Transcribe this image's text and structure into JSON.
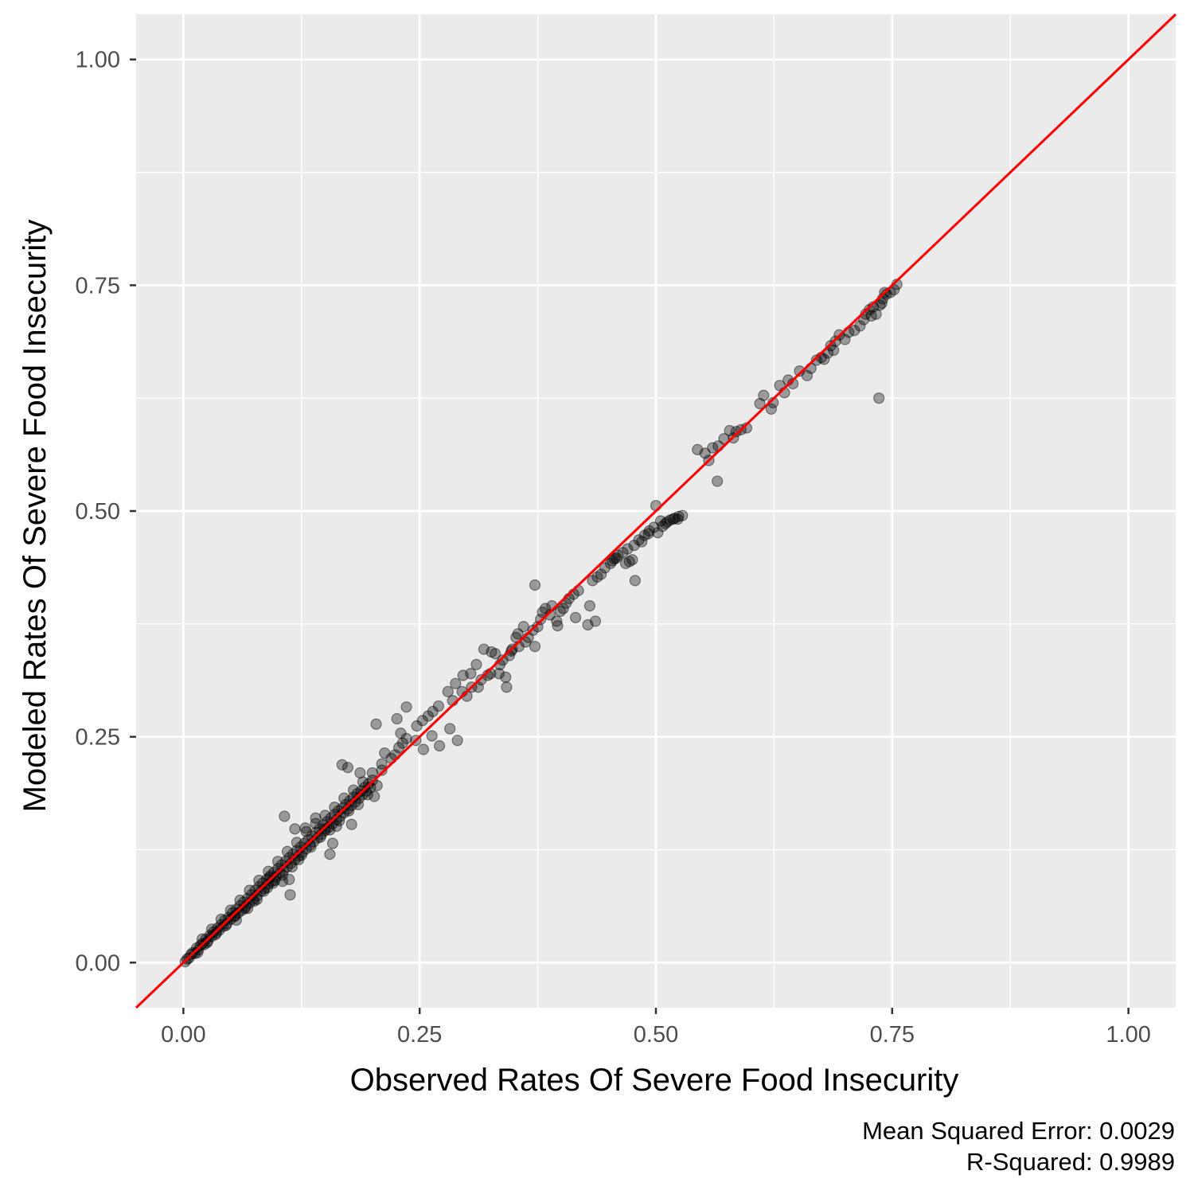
{
  "chart_data": {
    "type": "scatter",
    "xlabel": "Observed Rates Of Severe Food Insecurity",
    "ylabel": "Modeled Rates Of Severe Food Insecurity",
    "xlim": [
      -0.05,
      1.05
    ],
    "ylim": [
      -0.05,
      1.05
    ],
    "x_ticks": [
      "0.00",
      "0.25",
      "0.50",
      "0.75",
      "1.00"
    ],
    "y_ticks": [
      "0.00",
      "0.25",
      "0.50",
      "0.75",
      "1.00"
    ],
    "grid": true,
    "reference_line": {
      "type": "identity",
      "slope": 1,
      "intercept": 0,
      "color": "#ff0000"
    },
    "point_color": "#000000",
    "point_alpha": 0.35,
    "caption": [
      "Mean Squared Error: 0.0029",
      "R-Squared: 0.9989"
    ],
    "points": [
      [
        0.002,
        0.001
      ],
      [
        0.004,
        0.004
      ],
      [
        0.006,
        0.005
      ],
      [
        0.008,
        0.009
      ],
      [
        0.01,
        0.011
      ],
      [
        0.012,
        0.01
      ],
      [
        0.014,
        0.016
      ],
      [
        0.016,
        0.014
      ],
      [
        0.018,
        0.019
      ],
      [
        0.02,
        0.021
      ],
      [
        0.022,
        0.02
      ],
      [
        0.024,
        0.026
      ],
      [
        0.026,
        0.024
      ],
      [
        0.028,
        0.03
      ],
      [
        0.03,
        0.029
      ],
      [
        0.032,
        0.034
      ],
      [
        0.034,
        0.031
      ],
      [
        0.036,
        0.038
      ],
      [
        0.038,
        0.036
      ],
      [
        0.04,
        0.042
      ],
      [
        0.042,
        0.04
      ],
      [
        0.044,
        0.047
      ],
      [
        0.046,
        0.043
      ],
      [
        0.048,
        0.05
      ],
      [
        0.05,
        0.048
      ],
      [
        0.052,
        0.055
      ],
      [
        0.054,
        0.051
      ],
      [
        0.056,
        0.059
      ],
      [
        0.058,
        0.055
      ],
      [
        0.06,
        0.063
      ],
      [
        0.062,
        0.058
      ],
      [
        0.064,
        0.067
      ],
      [
        0.066,
        0.062
      ],
      [
        0.068,
        0.071
      ],
      [
        0.07,
        0.066
      ],
      [
        0.072,
        0.075
      ],
      [
        0.074,
        0.07
      ],
      [
        0.076,
        0.08
      ],
      [
        0.078,
        0.074
      ],
      [
        0.08,
        0.084
      ],
      [
        0.082,
        0.079
      ],
      [
        0.084,
        0.088
      ],
      [
        0.086,
        0.082
      ],
      [
        0.088,
        0.092
      ],
      [
        0.09,
        0.087
      ],
      [
        0.092,
        0.096
      ],
      [
        0.094,
        0.09
      ],
      [
        0.096,
        0.1
      ],
      [
        0.098,
        0.095
      ],
      [
        0.1,
        0.104
      ],
      [
        0.102,
        0.099
      ],
      [
        0.104,
        0.108
      ],
      [
        0.106,
        0.102
      ],
      [
        0.108,
        0.112
      ],
      [
        0.11,
        0.106
      ],
      [
        0.112,
        0.116
      ],
      [
        0.114,
        0.11
      ],
      [
        0.116,
        0.12
      ],
      [
        0.118,
        0.114
      ],
      [
        0.12,
        0.124
      ],
      [
        0.122,
        0.118
      ],
      [
        0.124,
        0.128
      ],
      [
        0.126,
        0.122
      ],
      [
        0.128,
        0.132
      ],
      [
        0.13,
        0.126
      ],
      [
        0.132,
        0.136
      ],
      [
        0.134,
        0.13
      ],
      [
        0.136,
        0.14
      ],
      [
        0.138,
        0.134
      ],
      [
        0.14,
        0.144
      ],
      [
        0.142,
        0.138
      ],
      [
        0.144,
        0.148
      ],
      [
        0.146,
        0.142
      ],
      [
        0.148,
        0.152
      ],
      [
        0.15,
        0.146
      ],
      [
        0.152,
        0.156
      ],
      [
        0.154,
        0.15
      ],
      [
        0.156,
        0.16
      ],
      [
        0.158,
        0.154
      ],
      [
        0.16,
        0.164
      ],
      [
        0.162,
        0.158
      ],
      [
        0.164,
        0.168
      ],
      [
        0.166,
        0.162
      ],
      [
        0.168,
        0.171
      ],
      [
        0.17,
        0.166
      ],
      [
        0.172,
        0.175
      ],
      [
        0.174,
        0.17
      ],
      [
        0.176,
        0.179
      ],
      [
        0.178,
        0.174
      ],
      [
        0.18,
        0.183
      ],
      [
        0.182,
        0.178
      ],
      [
        0.184,
        0.187
      ],
      [
        0.186,
        0.182
      ],
      [
        0.188,
        0.19
      ],
      [
        0.19,
        0.186
      ],
      [
        0.192,
        0.194
      ],
      [
        0.194,
        0.19
      ],
      [
        0.196,
        0.198
      ],
      [
        0.198,
        0.194
      ],
      [
        0.2,
        0.202
      ],
      [
        0.015,
        0.011
      ],
      [
        0.025,
        0.022
      ],
      [
        0.035,
        0.033
      ],
      [
        0.045,
        0.041
      ],
      [
        0.055,
        0.052
      ],
      [
        0.065,
        0.06
      ],
      [
        0.075,
        0.068
      ],
      [
        0.085,
        0.079
      ],
      [
        0.095,
        0.088
      ],
      [
        0.105,
        0.097
      ],
      [
        0.115,
        0.106
      ],
      [
        0.125,
        0.119
      ],
      [
        0.135,
        0.128
      ],
      [
        0.145,
        0.139
      ],
      [
        0.155,
        0.147
      ],
      [
        0.165,
        0.157
      ],
      [
        0.175,
        0.168
      ],
      [
        0.185,
        0.175
      ],
      [
        0.195,
        0.186
      ],
      [
        0.205,
        0.196
      ],
      [
        0.02,
        0.026
      ],
      [
        0.03,
        0.037
      ],
      [
        0.04,
        0.048
      ],
      [
        0.05,
        0.058
      ],
      [
        0.06,
        0.069
      ],
      [
        0.07,
        0.08
      ],
      [
        0.08,
        0.091
      ],
      [
        0.09,
        0.101
      ],
      [
        0.1,
        0.112
      ],
      [
        0.11,
        0.123
      ],
      [
        0.12,
        0.133
      ],
      [
        0.13,
        0.145
      ],
      [
        0.14,
        0.154
      ],
      [
        0.15,
        0.163
      ],
      [
        0.16,
        0.172
      ],
      [
        0.17,
        0.182
      ],
      [
        0.18,
        0.191
      ],
      [
        0.19,
        0.2
      ],
      [
        0.2,
        0.21
      ],
      [
        0.21,
        0.22
      ],
      [
        0.056,
        0.047
      ],
      [
        0.068,
        0.06
      ],
      [
        0.078,
        0.07
      ],
      [
        0.089,
        0.083
      ],
      [
        0.091,
        0.094
      ],
      [
        0.097,
        0.091
      ],
      [
        0.105,
        0.09
      ],
      [
        0.112,
        0.092
      ],
      [
        0.113,
        0.075
      ],
      [
        0.122,
        0.114
      ],
      [
        0.129,
        0.149
      ],
      [
        0.14,
        0.16
      ],
      [
        0.15,
        0.148
      ],
      [
        0.155,
        0.12
      ],
      [
        0.158,
        0.132
      ],
      [
        0.107,
        0.162
      ],
      [
        0.118,
        0.148
      ],
      [
        0.162,
        0.151
      ],
      [
        0.178,
        0.153
      ],
      [
        0.174,
        0.216
      ],
      [
        0.168,
        0.219
      ],
      [
        0.187,
        0.21
      ],
      [
        0.202,
        0.184
      ],
      [
        0.21,
        0.213
      ],
      [
        0.213,
        0.232
      ],
      [
        0.22,
        0.226
      ],
      [
        0.224,
        0.23
      ],
      [
        0.228,
        0.238
      ],
      [
        0.232,
        0.243
      ],
      [
        0.236,
        0.248
      ],
      [
        0.204,
        0.264
      ],
      [
        0.226,
        0.27
      ],
      [
        0.236,
        0.283
      ],
      [
        0.23,
        0.254
      ],
      [
        0.246,
        0.246
      ],
      [
        0.247,
        0.262
      ],
      [
        0.253,
        0.268
      ],
      [
        0.259,
        0.273
      ],
      [
        0.264,
        0.278
      ],
      [
        0.27,
        0.284
      ],
      [
        0.254,
        0.236
      ],
      [
        0.263,
        0.251
      ],
      [
        0.271,
        0.24
      ],
      [
        0.282,
        0.259
      ],
      [
        0.29,
        0.246
      ],
      [
        0.28,
        0.3
      ],
      [
        0.288,
        0.309
      ],
      [
        0.296,
        0.318
      ],
      [
        0.304,
        0.32
      ],
      [
        0.31,
        0.33
      ],
      [
        0.285,
        0.29
      ],
      [
        0.295,
        0.3
      ],
      [
        0.305,
        0.305
      ],
      [
        0.315,
        0.313
      ],
      [
        0.325,
        0.32
      ],
      [
        0.335,
        0.33
      ],
      [
        0.345,
        0.34
      ],
      [
        0.355,
        0.35
      ],
      [
        0.365,
        0.36
      ],
      [
        0.375,
        0.372
      ],
      [
        0.3,
        0.295
      ],
      [
        0.312,
        0.305
      ],
      [
        0.322,
        0.318
      ],
      [
        0.33,
        0.342
      ],
      [
        0.338,
        0.335
      ],
      [
        0.347,
        0.345
      ],
      [
        0.352,
        0.36
      ],
      [
        0.36,
        0.372
      ],
      [
        0.37,
        0.368
      ],
      [
        0.378,
        0.38
      ],
      [
        0.318,
        0.347
      ],
      [
        0.326,
        0.344
      ],
      [
        0.334,
        0.32
      ],
      [
        0.341,
        0.316
      ],
      [
        0.342,
        0.305
      ],
      [
        0.348,
        0.347
      ],
      [
        0.354,
        0.364
      ],
      [
        0.362,
        0.355
      ],
      [
        0.372,
        0.35
      ],
      [
        0.38,
        0.388
      ],
      [
        0.383,
        0.392
      ],
      [
        0.388,
        0.385
      ],
      [
        0.39,
        0.395
      ],
      [
        0.395,
        0.378
      ],
      [
        0.399,
        0.389
      ],
      [
        0.402,
        0.392
      ],
      [
        0.405,
        0.398
      ],
      [
        0.408,
        0.403
      ],
      [
        0.413,
        0.408
      ],
      [
        0.418,
        0.412
      ],
      [
        0.372,
        0.418
      ],
      [
        0.396,
        0.373
      ],
      [
        0.415,
        0.382
      ],
      [
        0.428,
        0.374
      ],
      [
        0.436,
        0.378
      ],
      [
        0.43,
        0.395
      ],
      [
        0.433,
        0.423
      ],
      [
        0.438,
        0.427
      ],
      [
        0.442,
        0.43
      ],
      [
        0.446,
        0.437
      ],
      [
        0.452,
        0.442
      ],
      [
        0.456,
        0.447
      ],
      [
        0.46,
        0.451
      ],
      [
        0.465,
        0.454
      ],
      [
        0.47,
        0.458
      ],
      [
        0.477,
        0.462
      ],
      [
        0.482,
        0.468
      ],
      [
        0.488,
        0.473
      ],
      [
        0.493,
        0.478
      ],
      [
        0.498,
        0.482
      ],
      [
        0.454,
        0.445
      ],
      [
        0.458,
        0.448
      ],
      [
        0.468,
        0.442
      ],
      [
        0.475,
        0.446
      ],
      [
        0.478,
        0.423
      ],
      [
        0.472,
        0.444
      ],
      [
        0.485,
        0.466
      ],
      [
        0.492,
        0.475
      ],
      [
        0.502,
        0.476
      ],
      [
        0.507,
        0.483
      ],
      [
        0.51,
        0.486
      ],
      [
        0.515,
        0.49
      ],
      [
        0.52,
        0.492
      ],
      [
        0.524,
        0.494
      ],
      [
        0.528,
        0.495
      ],
      [
        0.5,
        0.506
      ],
      [
        0.505,
        0.489
      ],
      [
        0.512,
        0.488
      ],
      [
        0.518,
        0.491
      ],
      [
        0.523,
        0.491
      ],
      [
        0.544,
        0.568
      ],
      [
        0.552,
        0.564
      ],
      [
        0.56,
        0.57
      ],
      [
        0.566,
        0.572
      ],
      [
        0.572,
        0.58
      ],
      [
        0.578,
        0.589
      ],
      [
        0.585,
        0.588
      ],
      [
        0.59,
        0.59
      ],
      [
        0.596,
        0.592
      ],
      [
        0.565,
        0.533
      ],
      [
        0.556,
        0.556
      ],
      [
        0.582,
        0.581
      ],
      [
        0.61,
        0.619
      ],
      [
        0.614,
        0.628
      ],
      [
        0.622,
        0.613
      ],
      [
        0.624,
        0.62
      ],
      [
        0.631,
        0.639
      ],
      [
        0.636,
        0.631
      ],
      [
        0.64,
        0.645
      ],
      [
        0.645,
        0.641
      ],
      [
        0.652,
        0.655
      ],
      [
        0.66,
        0.65
      ],
      [
        0.664,
        0.658
      ],
      [
        0.67,
        0.667
      ],
      [
        0.675,
        0.67
      ],
      [
        0.678,
        0.668
      ],
      [
        0.682,
        0.675
      ],
      [
        0.685,
        0.683
      ],
      [
        0.688,
        0.678
      ],
      [
        0.69,
        0.688
      ],
      [
        0.694,
        0.695
      ],
      [
        0.7,
        0.69
      ],
      [
        0.704,
        0.698
      ],
      [
        0.71,
        0.7
      ],
      [
        0.716,
        0.705
      ],
      [
        0.722,
        0.718
      ],
      [
        0.726,
        0.723
      ],
      [
        0.73,
        0.726
      ],
      [
        0.733,
        0.718
      ],
      [
        0.737,
        0.728
      ],
      [
        0.74,
        0.735
      ],
      [
        0.744,
        0.74
      ],
      [
        0.748,
        0.742
      ],
      [
        0.752,
        0.745
      ],
      [
        0.755,
        0.751
      ],
      [
        0.736,
        0.625
      ],
      [
        0.742,
        0.742
      ],
      [
        0.728,
        0.716
      ],
      [
        0.72,
        0.712
      ],
      [
        0.739,
        0.73
      ]
    ]
  }
}
